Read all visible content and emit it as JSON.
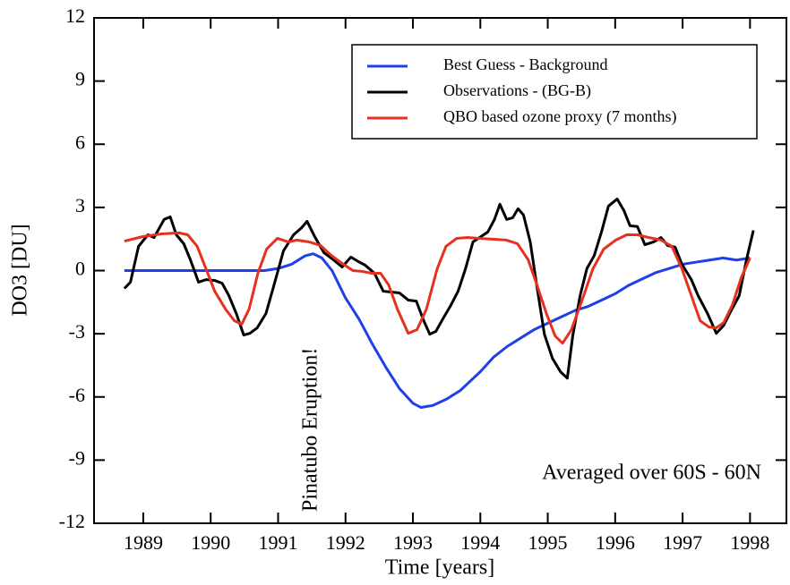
{
  "chart_data": {
    "type": "line",
    "x_label": "Time [years]",
    "y_label": "DO3 [DU]",
    "xlim": [
      1988.27,
      1998.54
    ],
    "xticks": [
      1989,
      1990,
      1991,
      1992,
      1993,
      1994,
      1995,
      1996,
      1997,
      1998
    ],
    "ylim": [
      -12,
      12
    ],
    "yticks": [
      -12,
      -9,
      -6,
      -3,
      0,
      3,
      6,
      9,
      12
    ],
    "grid": false,
    "legend": "upper right",
    "annotations": [
      {
        "text": "Pinatubo Eruption!",
        "color": "#e8301e"
      },
      {
        "text": "Averaged over 60S - 60N",
        "color": "#000000"
      }
    ],
    "series": [
      {
        "name": "Best Guess - Background",
        "color": "#1f3fe8",
        "x": [
          1988.72,
          1990.0,
          1990.8,
          1991.0,
          1991.2,
          1991.4,
          1991.52,
          1991.65,
          1991.8,
          1992.0,
          1992.2,
          1992.4,
          1992.6,
          1992.8,
          1993.0,
          1993.12,
          1993.3,
          1993.5,
          1993.7,
          1993.9,
          1994.0,
          1994.2,
          1994.4,
          1994.6,
          1994.8,
          1995.0,
          1995.2,
          1995.4,
          1995.6,
          1995.8,
          1996.0,
          1996.2,
          1996.4,
          1996.6,
          1996.8,
          1997.0,
          1997.2,
          1997.4,
          1997.6,
          1997.8,
          1998.0
        ],
        "values": [
          0,
          0,
          0,
          0.1,
          0.3,
          0.7,
          0.8,
          0.6,
          0.0,
          -1.3,
          -2.3,
          -3.5,
          -4.6,
          -5.6,
          -6.3,
          -6.5,
          -6.4,
          -6.1,
          -5.7,
          -5.1,
          -4.8,
          -4.1,
          -3.6,
          -3.2,
          -2.8,
          -2.5,
          -2.2,
          -1.9,
          -1.7,
          -1.4,
          -1.1,
          -0.7,
          -0.4,
          -0.1,
          0.1,
          0.3,
          0.4,
          0.5,
          0.6,
          0.5,
          0.6
        ]
      },
      {
        "name": "Observations - (BG-B)",
        "color": "#000000",
        "x": [
          1988.72,
          1988.81,
          1988.93,
          1989.07,
          1989.16,
          1989.31,
          1989.4,
          1989.49,
          1989.6,
          1989.7,
          1989.82,
          1989.93,
          1990.06,
          1990.17,
          1990.27,
          1990.38,
          1990.49,
          1990.58,
          1990.69,
          1990.82,
          1990.94,
          1991.08,
          1991.23,
          1991.35,
          1991.43,
          1991.55,
          1991.68,
          1991.82,
          1991.95,
          1992.08,
          1992.19,
          1992.29,
          1992.43,
          1992.56,
          1992.68,
          1992.8,
          1992.93,
          1993.05,
          1993.16,
          1993.25,
          1993.34,
          1993.45,
          1993.56,
          1993.67,
          1993.78,
          1993.89,
          1993.99,
          1994.11,
          1994.21,
          1994.29,
          1994.39,
          1994.48,
          1994.56,
          1994.64,
          1994.74,
          1994.84,
          1994.95,
          1995.07,
          1995.19,
          1995.29,
          1995.37,
          1995.48,
          1995.58,
          1995.69,
          1995.8,
          1995.9,
          1996.03,
          1996.13,
          1996.22,
          1996.33,
          1996.44,
          1996.57,
          1996.68,
          1996.78,
          1996.89,
          1996.99,
          1997.13,
          1997.23,
          1997.37,
          1997.5,
          1997.61,
          1997.71,
          1997.84,
          1997.95,
          1998.05
        ],
        "values": [
          -0.85,
          -0.55,
          1.15,
          1.7,
          1.57,
          2.43,
          2.55,
          1.7,
          1.28,
          0.51,
          -0.55,
          -0.43,
          -0.47,
          -0.6,
          -1.19,
          -2.04,
          -3.06,
          -2.98,
          -2.72,
          -2.04,
          -0.68,
          0.94,
          1.7,
          2.04,
          2.34,
          1.57,
          0.85,
          0.51,
          0.17,
          0.64,
          0.43,
          0.26,
          -0.13,
          -0.98,
          -1.02,
          -1.06,
          -1.4,
          -1.45,
          -2.38,
          -3.02,
          -2.89,
          -2.26,
          -1.66,
          -0.98,
          0.09,
          1.36,
          1.57,
          1.83,
          2.43,
          3.15,
          2.43,
          2.51,
          2.94,
          2.64,
          1.36,
          -0.77,
          -3.02,
          -4.17,
          -4.81,
          -5.11,
          -3.11,
          -1.19,
          0.09,
          0.72,
          1.87,
          3.06,
          3.4,
          2.85,
          2.13,
          2.09,
          1.23,
          1.36,
          1.57,
          1.19,
          1.11,
          0.3,
          -0.43,
          -1.19,
          -2.04,
          -2.98,
          -2.6,
          -1.96,
          -1.19,
          0.55,
          1.91
        ]
      },
      {
        "name": "QBO based ozone proxy (7 months)",
        "color": "#e8301e",
        "x": [
          1988.72,
          1989.0,
          1989.27,
          1989.53,
          1989.66,
          1989.8,
          1989.93,
          1990.06,
          1990.22,
          1990.35,
          1990.46,
          1990.57,
          1990.7,
          1990.83,
          1990.99,
          1991.15,
          1991.28,
          1991.46,
          1991.63,
          1991.79,
          1991.95,
          1992.11,
          1992.25,
          1992.39,
          1992.52,
          1992.64,
          1992.77,
          1992.93,
          1993.06,
          1993.2,
          1993.36,
          1993.49,
          1993.65,
          1993.81,
          1993.98,
          1994.18,
          1994.38,
          1994.55,
          1994.71,
          1994.84,
          1994.98,
          1995.11,
          1995.22,
          1995.35,
          1995.51,
          1995.67,
          1995.83,
          1996.01,
          1996.17,
          1996.33,
          1996.5,
          1996.68,
          1996.84,
          1996.99,
          1997.13,
          1997.26,
          1997.39,
          1997.5,
          1997.61,
          1997.74,
          1997.87,
          1998.0
        ],
        "values": [
          1.4,
          1.62,
          1.74,
          1.79,
          1.7,
          1.15,
          0.09,
          -0.98,
          -1.83,
          -2.38,
          -2.55,
          -1.83,
          -0.13,
          1.02,
          1.53,
          1.36,
          1.45,
          1.36,
          1.19,
          0.72,
          0.34,
          0,
          -0.04,
          -0.13,
          -0.13,
          -0.68,
          -1.83,
          -2.98,
          -2.81,
          -1.83,
          0.09,
          1.15,
          1.53,
          1.57,
          1.53,
          1.49,
          1.45,
          1.28,
          0.51,
          -0.68,
          -2.04,
          -3.11,
          -3.45,
          -2.81,
          -1.4,
          0.09,
          1.02,
          1.45,
          1.7,
          1.7,
          1.57,
          1.45,
          1.15,
          0.09,
          -1.19,
          -2.38,
          -2.68,
          -2.72,
          -2.47,
          -1.62,
          -0.34,
          0.6
        ]
      }
    ]
  }
}
